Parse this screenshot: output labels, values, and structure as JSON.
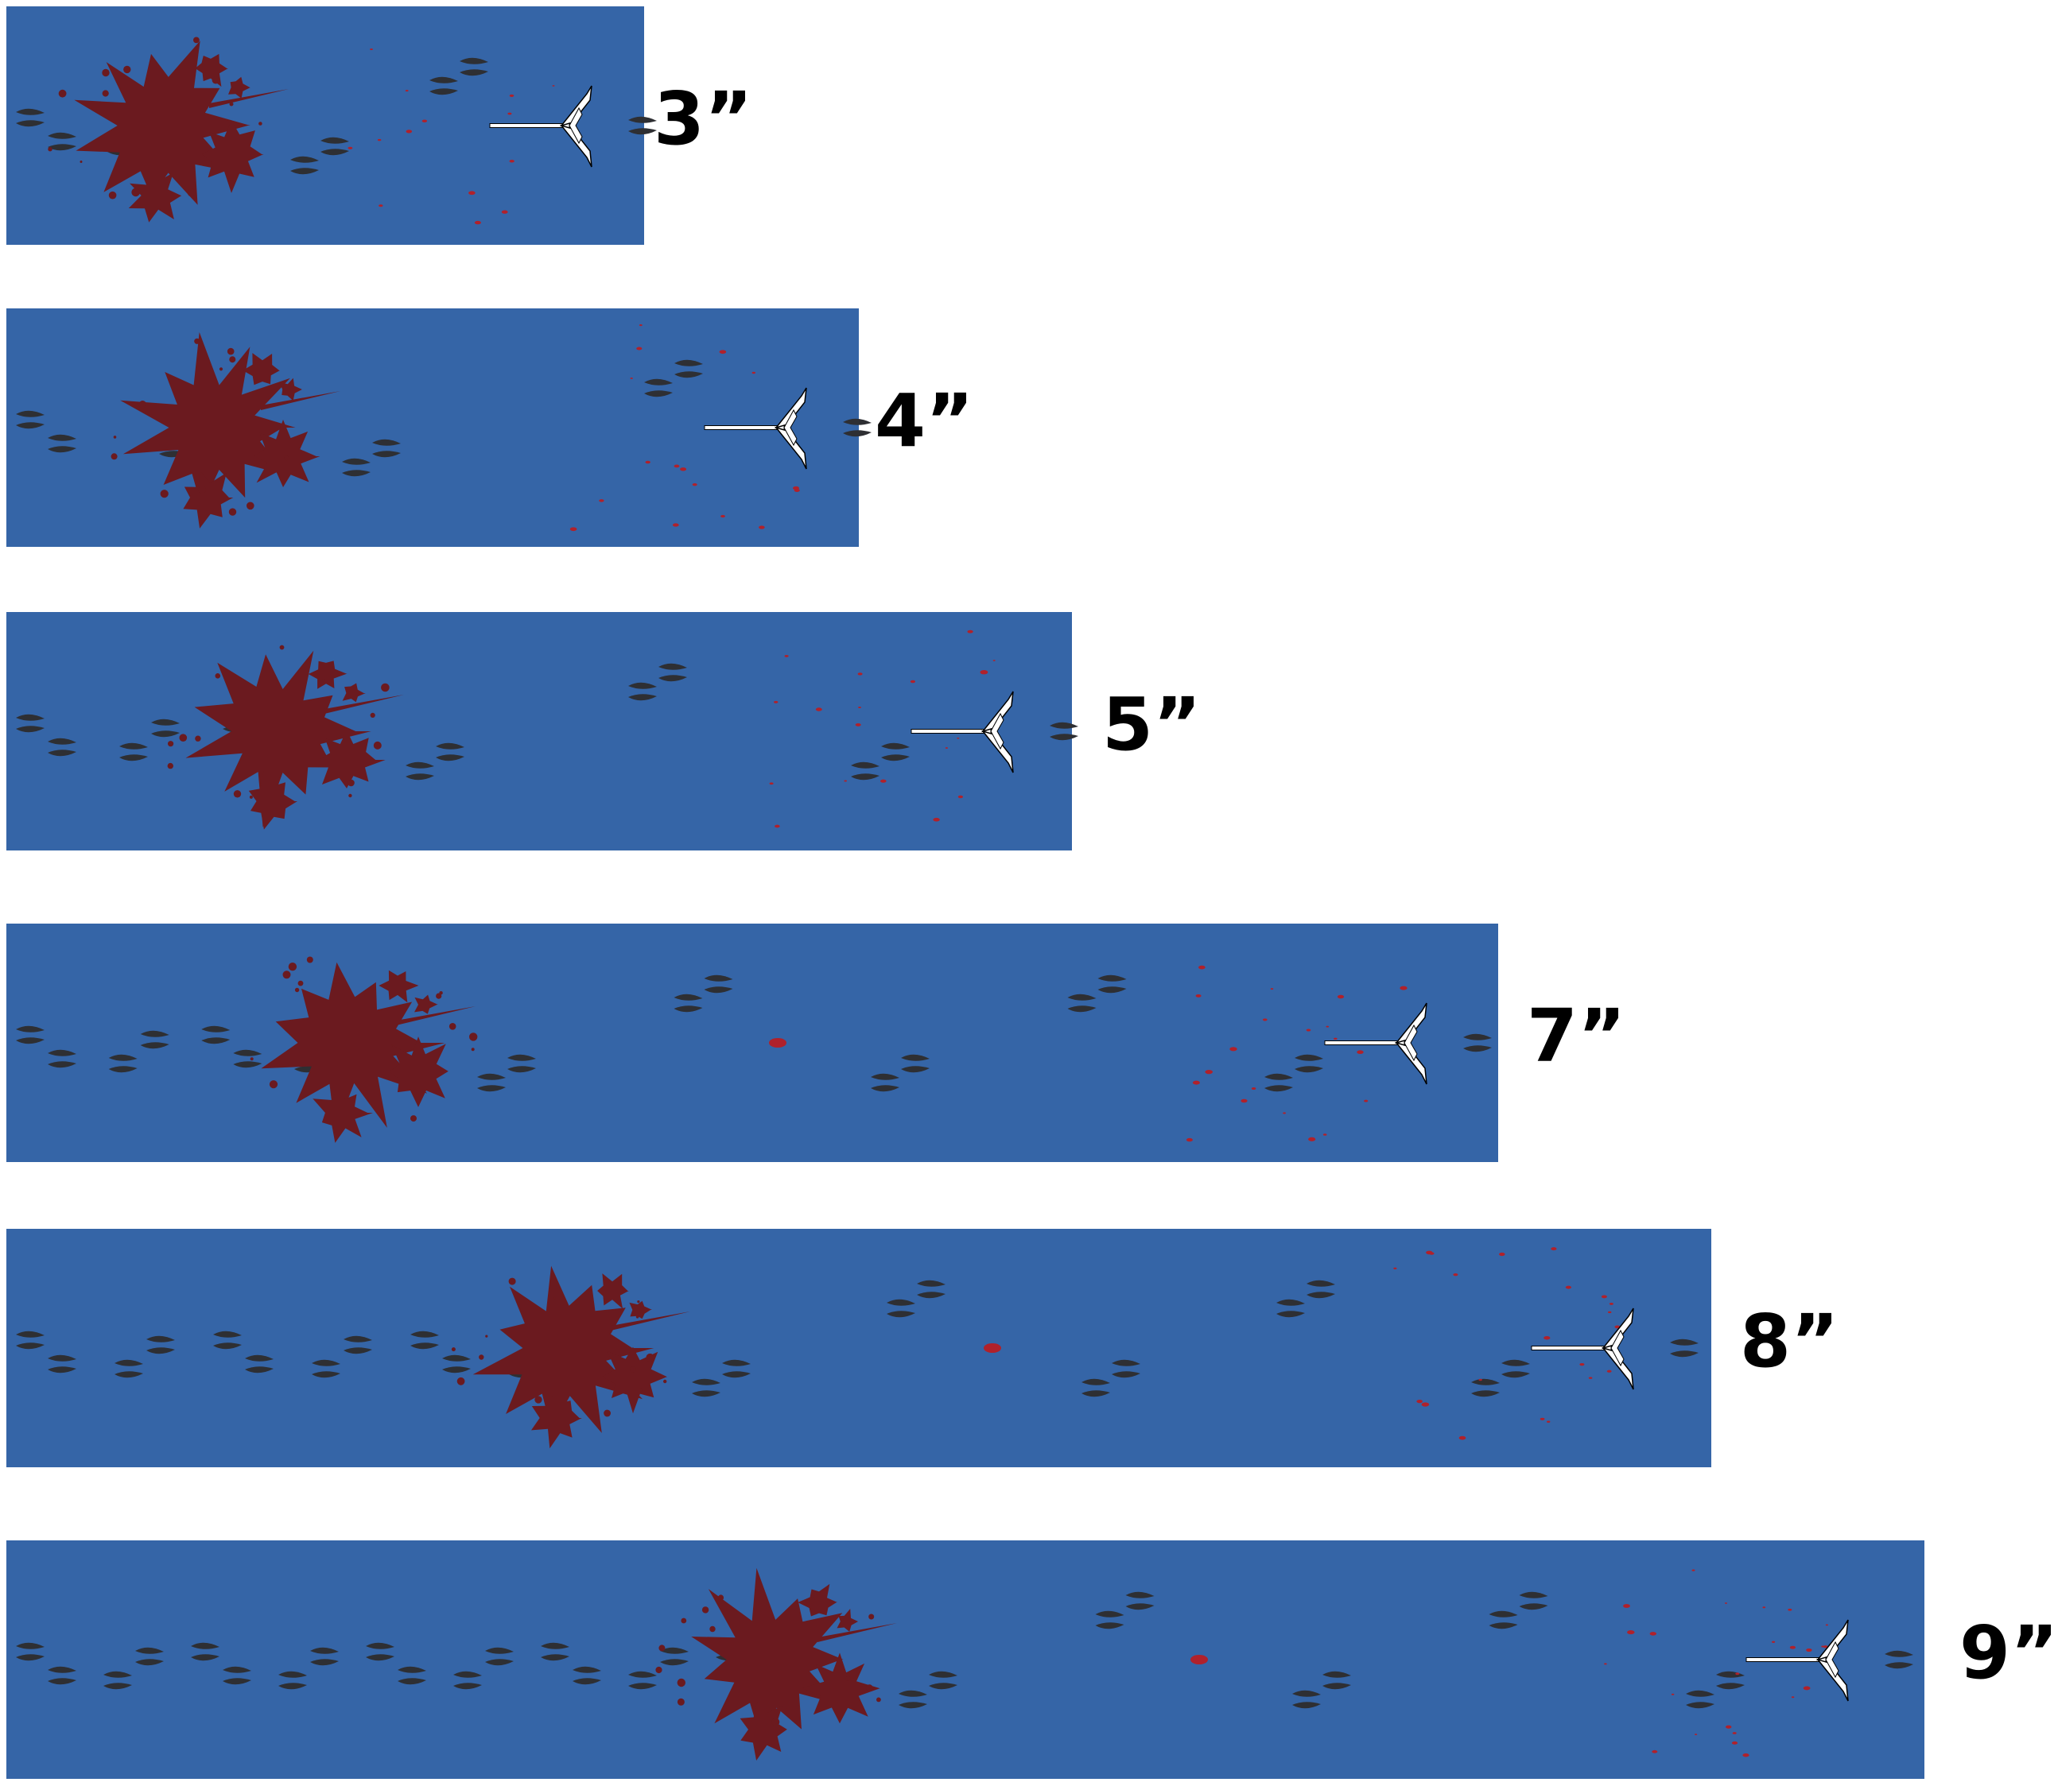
{
  "figure": {
    "background": "#ffffff",
    "strip_color": "#3565a7",
    "blood_color": "#6b1a1f",
    "drop_color": "#b0212b",
    "track_color": "#2e2f33",
    "arrow_color": "#ffffff",
    "icons": [
      "blood-splatter-icon",
      "deer-track-icon",
      "arrow-icon",
      "blood-drop-icon"
    ]
  },
  "strips": [
    {
      "label": "3”"
    },
    {
      "label": "4”"
    },
    {
      "label": "5”"
    },
    {
      "label": "7”"
    },
    {
      "label": "8”"
    },
    {
      "label": "9”"
    }
  ]
}
